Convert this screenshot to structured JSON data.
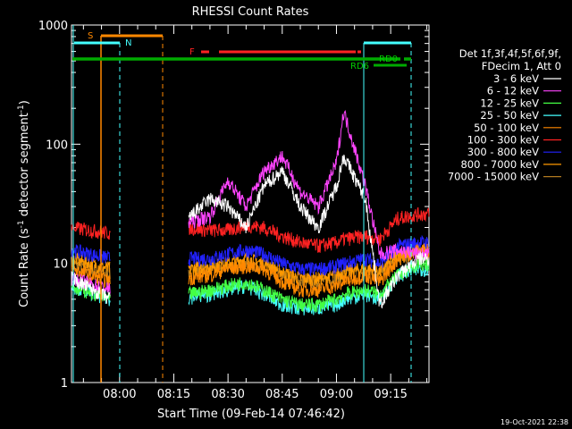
{
  "chart_data": {
    "type": "line",
    "title": "RHESSI Count Rates",
    "xlabel": "Start Time (09-Feb-14 07:46:42)",
    "ylabel": "Count Rate (s",
    "ylabel_sup": "-1",
    "ylabel_rest": " detector segment",
    "ylabel_sup2": "-1",
    "ylabel_end": ")",
    "x_scale": "time",
    "x_range_minutes": [
      466.7,
      565.6
    ],
    "x_ticks": [
      {
        "label": "08:00",
        "minutes": 480
      },
      {
        "label": "08:15",
        "minutes": 495
      },
      {
        "label": "08:30",
        "minutes": 510
      },
      {
        "label": "08:45",
        "minutes": 525
      },
      {
        "label": "09:00",
        "minutes": 540
      },
      {
        "label": "09:15",
        "minutes": 555
      }
    ],
    "y_scale": "log",
    "ylim": [
      1,
      1000
    ],
    "y_ticks": [
      {
        "label": "1",
        "value": 1
      },
      {
        "label": "10",
        "value": 10
      },
      {
        "label": "100",
        "value": 100
      },
      {
        "label": "1000",
        "value": 1000
      }
    ],
    "legend_header": [
      "Det 1f,3f,4f,5f,6f,9f,",
      "FDecim 1, Att 0"
    ],
    "series": [
      {
        "name": "3 - 6 keV",
        "color": "#ffffff",
        "values": [
          7.5,
          5.0,
          24,
          35,
          30,
          20,
          45,
          60,
          30,
          20,
          45,
          80,
          35,
          4.5,
          8,
          11
        ]
      },
      {
        "name": "6 - 12 keV",
        "color": "#ff44ff",
        "values": [
          7.5,
          6.0,
          22,
          25,
          50,
          30,
          60,
          80,
          40,
          30,
          70,
          190,
          45,
          12,
          13,
          12
        ]
      },
      {
        "name": "12 - 25 keV",
        "color": "#44ff44",
        "values": [
          6.5,
          5.0,
          5.5,
          6.0,
          6.5,
          7.0,
          6.0,
          5.0,
          4.5,
          4.5,
          5.0,
          5.5,
          6.0,
          5.5,
          8,
          10
        ]
      },
      {
        "name": "25 - 50 keV",
        "color": "#44ffff",
        "values": [
          6.5,
          5.0,
          5.2,
          5.5,
          6.0,
          6.5,
          5.5,
          4.5,
          4.2,
          4.2,
          4.5,
          5.0,
          5.5,
          5.0,
          8,
          9
        ]
      },
      {
        "name": "50 - 100 keV",
        "color": "#ff8800",
        "values": [
          9,
          7,
          7.5,
          8,
          9,
          9.5,
          9,
          7,
          6,
          6,
          6.5,
          7,
          8,
          7,
          11,
          13
        ]
      },
      {
        "name": "100 - 300 keV",
        "color": "#ff2222",
        "values": [
          20,
          18,
          20,
          19,
          19,
          21,
          20,
          17,
          15,
          14,
          15,
          16,
          17,
          16,
          24,
          26
        ]
      },
      {
        "name": "300 - 800 keV",
        "color": "#2222ff",
        "values": [
          13,
          11,
          11,
          11,
          12,
          13,
          12,
          10,
          9,
          9,
          9.5,
          10,
          11,
          10,
          14,
          15
        ]
      },
      {
        "name": "800 - 7000 keV",
        "color": "#ff9900",
        "values": [
          11,
          9,
          9,
          9.5,
          10,
          11,
          10,
          8.5,
          7.5,
          7.5,
          8,
          8.5,
          9,
          8.5,
          12,
          12.5
        ]
      },
      {
        "name": "7000 - 15000 keV",
        "color": "#b07a20",
        "values": [
          10,
          8,
          8.5,
          9,
          9.5,
          10,
          9.5,
          8,
          7,
          7,
          7.5,
          8,
          8.5,
          8,
          11,
          12
        ]
      }
    ],
    "series_x_minutes": [
      466.7,
      477.5,
      499,
      505,
      510,
      515,
      520,
      525,
      530,
      535,
      540,
      542,
      548,
      552,
      557,
      563
    ],
    "gap": {
      "from_minutes": 477.5,
      "to_minutes": 499
    },
    "flags": [
      {
        "label": "S",
        "color": "#ff8800"
      },
      {
        "label": "N",
        "color": "#44ffff"
      },
      {
        "label": "F",
        "color": "#ff2222"
      },
      {
        "label": "RD0",
        "color": "#00cc00"
      },
      {
        "label": "RD6",
        "color": "#00cc00"
      }
    ],
    "footer_date": "19-Oct-2021 22:38"
  }
}
